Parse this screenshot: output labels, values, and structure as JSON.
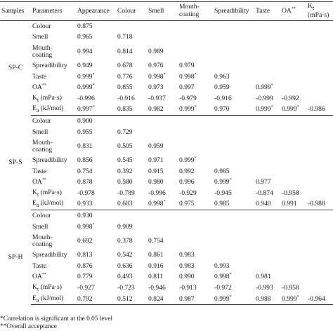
{
  "headers": [
    "Samples",
    "Parameters",
    "Appearance",
    "Colour",
    "Smell",
    "Mouth-coating",
    "Spreadibility",
    "Taste",
    "OA**",
    "Kt (mPa·s)"
  ],
  "groups": [
    {
      "sample": "SP-C",
      "rows": [
        {
          "param": "Colour",
          "values": [
            "0.875",
            "",
            "",
            "",
            "",
            "",
            "",
            ""
          ]
        },
        {
          "param": "Smell",
          "values": [
            "0.965",
            "0.718",
            "",
            "",
            "",
            "",
            "",
            ""
          ]
        },
        {
          "param": "Mouth-coating",
          "values": [
            "0.994",
            "0.814",
            "0.989",
            "",
            "",
            "",
            "",
            ""
          ]
        },
        {
          "param": "Spreadibility",
          "values": [
            "0.949",
            "0.678",
            "0.976",
            "0.979",
            "",
            "",
            "",
            ""
          ]
        },
        {
          "param": "Taste",
          "values": [
            "0.999*",
            "0.776",
            "0.998*",
            "0.998*",
            "0.963",
            "",
            "",
            ""
          ]
        },
        {
          "param": "OA**",
          "values": [
            "0.999*",
            "0.855",
            "0.973",
            "0.997",
            "0.959",
            "0.999*",
            "",
            ""
          ]
        },
        {
          "param": "Kt (mPa·s)",
          "values": [
            "-0.996",
            "-0.916",
            "-0.937",
            "-0.979",
            "-0.916",
            "-0.999",
            "-0.992",
            ""
          ]
        },
        {
          "param": "Ea (kJ/mol)",
          "values": [
            "0.997*",
            "0.835",
            "0.982",
            "0.999*",
            "0.970",
            "0.999*",
            "0.999*",
            "-0.986"
          ]
        }
      ]
    },
    {
      "sample": "SP-S",
      "rows": [
        {
          "param": "Colour",
          "values": [
            "0.900",
            "",
            "",
            "",
            "",
            "",
            "",
            ""
          ]
        },
        {
          "param": "Smell",
          "values": [
            "0.955",
            "0.729",
            "",
            "",
            "",
            "",
            "",
            ""
          ]
        },
        {
          "param": "Mouth-coating",
          "values": [
            "0.831",
            "0.505",
            "0.959",
            "",
            "",
            "",
            "",
            ""
          ]
        },
        {
          "param": "Spreadibility",
          "values": [
            "0.856",
            "0.545",
            "0.971",
            "0.999*",
            "",
            "",
            "",
            ""
          ]
        },
        {
          "param": "Taste",
          "values": [
            "0.754",
            "0.392",
            "0.915",
            "0.992",
            "0.985",
            "",
            "",
            ""
          ]
        },
        {
          "param": "OA**",
          "values": [
            "0.878",
            "0.580",
            "0.980",
            "0.996",
            "0.999*",
            "0.977",
            "",
            ""
          ]
        },
        {
          "param": "Kt (mPa·s)",
          "values": [
            "-0.978",
            "-0.789",
            "-0.996",
            "-0.929",
            "-0.945",
            "-0.874",
            "-0.958",
            ""
          ]
        },
        {
          "param": "Ea (kJ/mol)",
          "values": [
            "0.933",
            "0.683",
            "0.998*",
            "0.975",
            "0.985",
            "0.940",
            "0.991",
            "-0.988"
          ]
        }
      ]
    },
    {
      "sample": "SP-H",
      "rows": [
        {
          "param": "Colour",
          "values": [
            "0.930",
            "",
            "",
            "",
            "",
            "",
            "",
            ""
          ]
        },
        {
          "param": "Smell",
          "values": [
            "0.998*",
            "0.909",
            "",
            "",
            "",
            "",
            "",
            ""
          ]
        },
        {
          "param": "Mouth-coating",
          "values": [
            "0.692",
            "0.378",
            "0.754",
            "",
            "",
            "",
            "",
            ""
          ]
        },
        {
          "param": "Spreadibility",
          "values": [
            "0.813",
            "0.542",
            "0.861",
            "0.983",
            "",
            "",
            "",
            ""
          ]
        },
        {
          "param": "Taste",
          "values": [
            "0.876",
            "0.636",
            "0.916",
            "0.983",
            "0.993",
            "",
            "",
            ""
          ]
        },
        {
          "param": "OA**",
          "values": [
            "0.779",
            "0.493",
            "0.811",
            "0.990",
            "0.998*",
            "0.981",
            "",
            ""
          ]
        },
        {
          "param": "Kt (mPa·s)",
          "values": [
            "-0.927",
            "-0.723",
            "-0.946",
            "-0.913",
            "-0.972",
            "-0.993",
            "-0.958",
            ""
          ]
        },
        {
          "param": "Ea (kJ/mol)",
          "values": [
            "0.792",
            "0.512",
            "0.824",
            "0.987",
            "0.999*",
            "0.988",
            "0.999*",
            "-0.964"
          ]
        }
      ]
    }
  ],
  "footnotes": [
    "*Correlation is significant at the 0.05 level",
    "**Overall acceptance"
  ]
}
